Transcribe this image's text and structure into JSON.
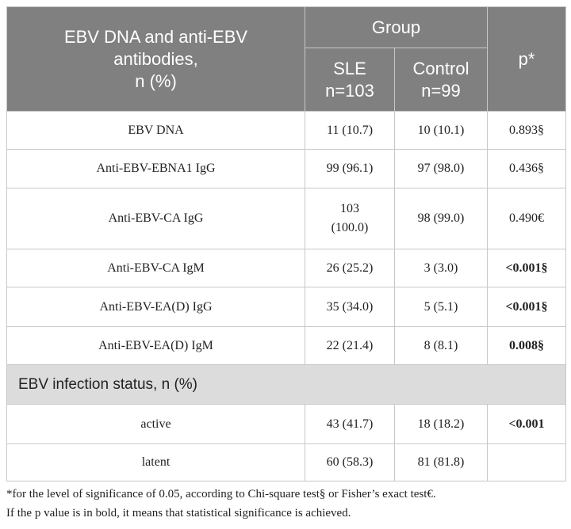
{
  "header": {
    "measure": "EBV DNA and anti-EBV\nantibodies,\nn (%)",
    "group": "Group",
    "sle": "SLE\nn=103",
    "control": "Control\nn=99",
    "p": "p*"
  },
  "rows": [
    {
      "label": "EBV DNA",
      "sle": "11 (10.7)",
      "control": "10 (10.1)",
      "p": "0.893§",
      "p_bold": false
    },
    {
      "label": "Anti-EBV-EBNA1 IgG",
      "sle": "99 (96.1)",
      "control": "97 (98.0)",
      "p": "0.436§",
      "p_bold": false
    },
    {
      "label": "Anti-EBV-CA IgG",
      "sle": "103\n(100.0)",
      "control": "98 (99.0)",
      "p": "0.490€",
      "p_bold": false
    },
    {
      "label": "Anti-EBV-CA IgM",
      "sle": "26 (25.2)",
      "control": "3 (3.0)",
      "p": "<0.001§",
      "p_bold": true
    },
    {
      "label": "Anti-EBV-EA(D) IgG",
      "sle": "35 (34.0)",
      "control": "5 (5.1)",
      "p": "<0.001§",
      "p_bold": true
    },
    {
      "label": "Anti-EBV-EA(D) IgM",
      "sle": "22 (21.4)",
      "control": "8 (8.1)",
      "p": "0.008§",
      "p_bold": true
    }
  ],
  "section": "EBV infection status, n (%)",
  "section_rows": [
    {
      "label": "active",
      "sle": "43 (41.7)",
      "control": "18 (18.2)",
      "p": "<0.001",
      "p_bold": true
    },
    {
      "label": "latent",
      "sle": "60 (58.3)",
      "control": "81 (81.8)"
    }
  ],
  "footnote": "*for the level of significance of 0.05, according to Chi-square test§ or Fisher’s exact test€.\nIf the p value is in bold, it means that statistical significance is achieved."
}
